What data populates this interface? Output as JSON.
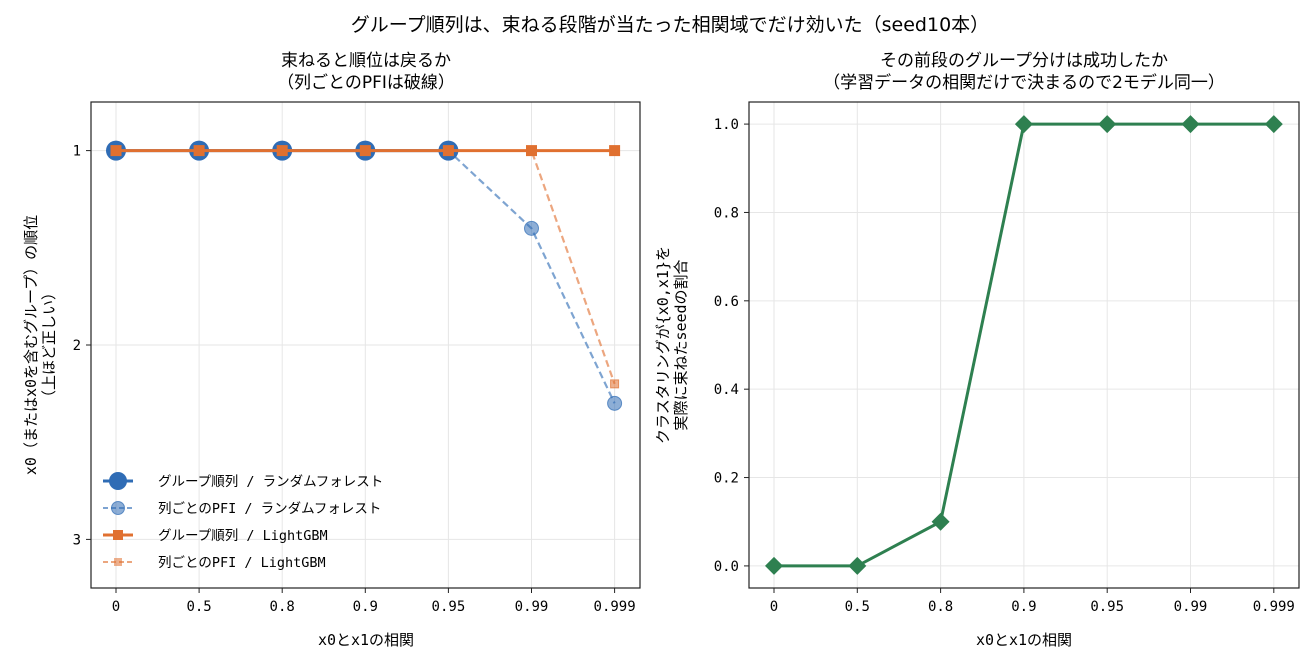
{
  "figure": {
    "suptitle": "グループ順列は、束ねる段階が当たった相関域でだけ効いた（seed10本）"
  },
  "chart_data": [
    {
      "type": "line",
      "title_line1": "束ねると順位は戻るか",
      "title_line2": "（列ごとのPFIは破線）",
      "xlabel": "x0とx1の相関",
      "ylabel_line1": "x0（またはx0を含むグループ）の順位",
      "ylabel_line2": "（上ほど正しい）",
      "categories": [
        "0",
        "0.5",
        "0.8",
        "0.9",
        "0.95",
        "0.99",
        "0.999"
      ],
      "y_inverted": true,
      "ylim": [
        3.25,
        0.75
      ],
      "yticks": [
        1,
        2,
        3
      ],
      "grid": true,
      "legend_position": "lower-left",
      "series": [
        {
          "name": "グループ順列 / ランダムフォレスト",
          "color": "#2f6cb5",
          "style": "solid",
          "marker": "circle-large",
          "values": [
            1,
            1,
            1,
            1,
            1,
            null,
            null
          ]
        },
        {
          "name": "列ごとのPFI / ランダムフォレスト",
          "color": "#2f6cb5",
          "style": "dashed",
          "marker": "circle-faded",
          "values": [
            1,
            1,
            1,
            1,
            1,
            1.4,
            2.3
          ]
        },
        {
          "name": "グループ順列 / LightGBM",
          "color": "#e07030",
          "style": "solid",
          "marker": "square",
          "values": [
            1,
            1,
            1,
            1,
            1,
            1,
            1
          ]
        },
        {
          "name": "列ごとのPFI / LightGBM",
          "color": "#e07030",
          "style": "dashed",
          "marker": "square-faded",
          "values": [
            1,
            1,
            1,
            1,
            1,
            1,
            2.2
          ]
        }
      ]
    },
    {
      "type": "line",
      "title_line1": "その前段のグループ分けは成功したか",
      "title_line2": "（学習データの相関だけで決まるので2モデル同一）",
      "xlabel": "x0とx1の相関",
      "ylabel_line1": "クラスタリングが{x0,x1}を",
      "ylabel_line2": "実際に束ねたseedの割合",
      "categories": [
        "0",
        "0.5",
        "0.8",
        "0.9",
        "0.95",
        "0.99",
        "0.999"
      ],
      "ylim": [
        -0.05,
        1.05
      ],
      "yticks": [
        0.0,
        0.2,
        0.4,
        0.6,
        0.8,
        1.0
      ],
      "ytick_labels": [
        "0.0",
        "0.2",
        "0.4",
        "0.6",
        "0.8",
        "1.0"
      ],
      "grid": true,
      "series": [
        {
          "color": "#2e8050",
          "style": "solid",
          "marker": "diamond",
          "values": [
            0.0,
            0.0,
            0.1,
            1.0,
            1.0,
            1.0,
            1.0
          ]
        }
      ]
    }
  ]
}
